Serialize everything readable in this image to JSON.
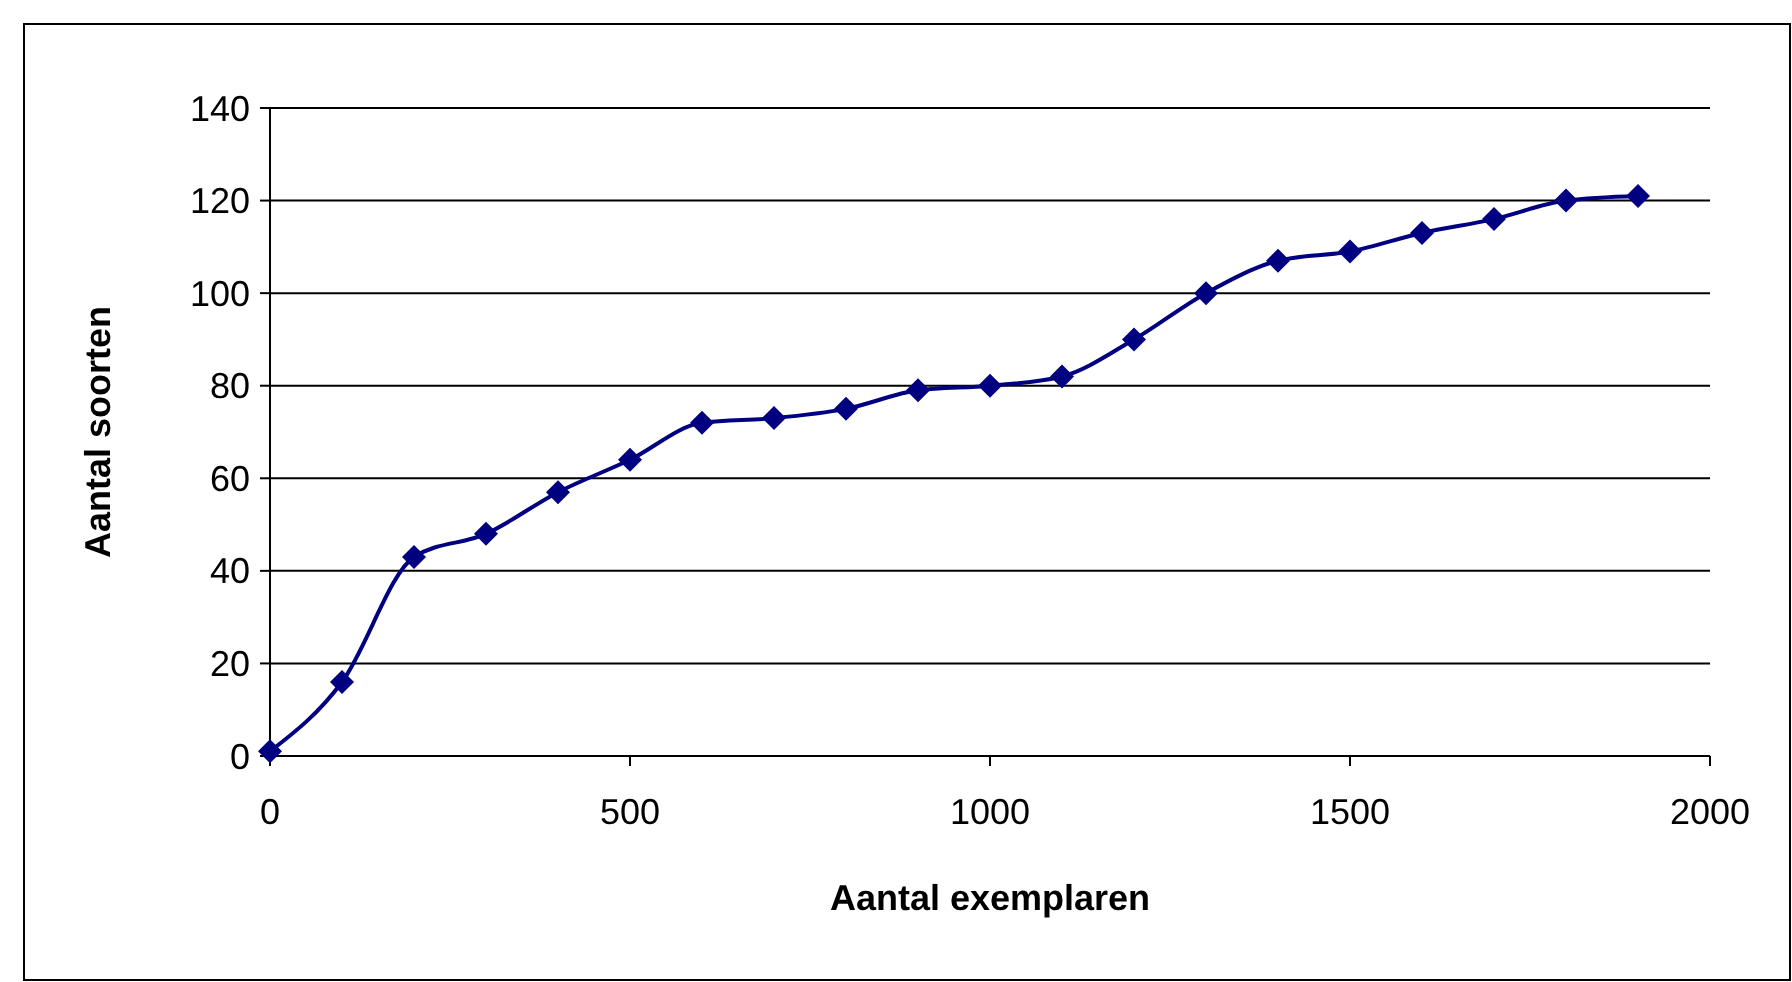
{
  "chart_data": {
    "type": "line",
    "xlabel": "Aantal exemplaren",
    "ylabel": "Aantal soorten",
    "x": [
      0,
      100,
      200,
      300,
      400,
      500,
      600,
      700,
      800,
      900,
      1000,
      1100,
      1200,
      1300,
      1400,
      1500,
      1600,
      1700,
      1800,
      1900
    ],
    "series": [
      {
        "color": "#000080",
        "values": [
          1,
          16,
          43,
          48,
          57,
          64,
          72,
          73,
          75,
          79,
          80,
          82,
          90,
          100,
          107,
          109,
          113,
          116,
          120,
          121
        ]
      }
    ],
    "xlim": [
      0,
      2000
    ],
    "xticks": [
      0,
      500,
      1000,
      1500,
      2000
    ],
    "ylim": [
      0,
      140
    ],
    "yticks": [
      0,
      20,
      40,
      60,
      80,
      100,
      120,
      140
    ],
    "grid": "y",
    "marker": "diamond",
    "line_style": "solid"
  }
}
